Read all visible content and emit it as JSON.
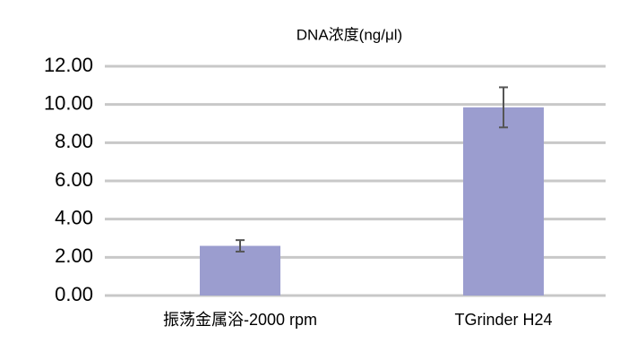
{
  "chart_data": {
    "type": "bar",
    "title": "DNA浓度(ng/μl)",
    "categories": [
      "振荡金属浴-2000 rpm",
      "TGrinder H24"
    ],
    "values": [
      2.6,
      9.85
    ],
    "errors": [
      0.3,
      1.05
    ],
    "color": "#9b9dcf",
    "ylim": [
      0,
      12
    ],
    "yticks": [
      {
        "value": 0,
        "label": "0.00"
      },
      {
        "value": 2,
        "label": "2.00"
      },
      {
        "value": 4,
        "label": "4.00"
      },
      {
        "value": 6,
        "label": "6.00"
      },
      {
        "value": 8,
        "label": "8.00"
      },
      {
        "value": 10,
        "label": "10.00"
      },
      {
        "value": 12,
        "label": "12.00"
      }
    ],
    "grid": true
  }
}
